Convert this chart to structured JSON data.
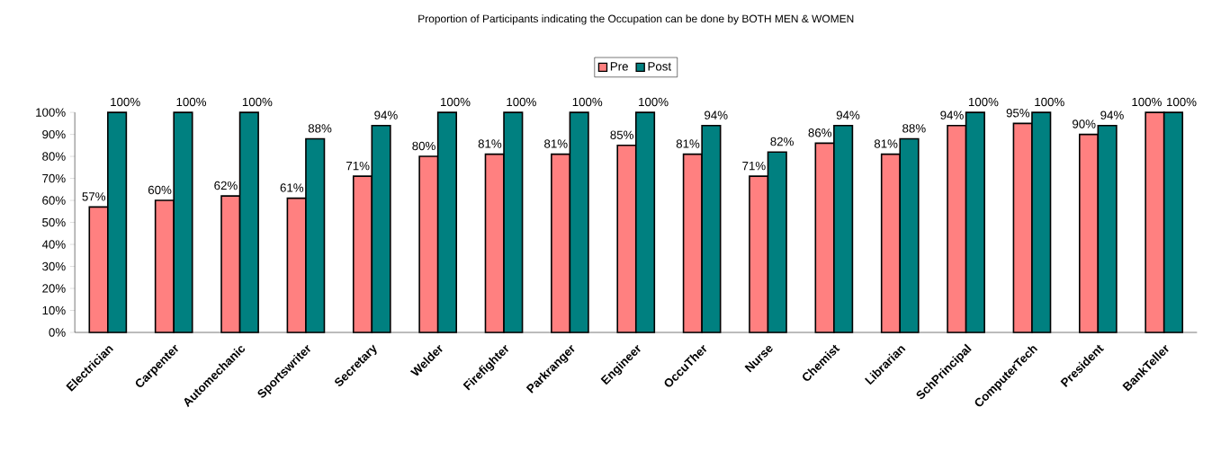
{
  "chart_data": {
    "type": "bar",
    "title": "Proportion of Participants indicating the Occupation can be done by BOTH MEN & WOMEN",
    "categories": [
      "Electrician",
      "Carpenter",
      "Automechanic",
      "Sportswriter",
      "Secretary",
      "Welder",
      "Firefighter",
      "Parkranger",
      "Engineer",
      "OccuTher",
      "Nurse",
      "Chemist",
      "Librarian",
      "SchPrincipal",
      "ComputerTech",
      "President",
      "BankTeller"
    ],
    "series": [
      {
        "name": "Pre",
        "color": "#ff8080",
        "values": [
          57,
          60,
          62,
          61,
          71,
          80,
          81,
          81,
          85,
          81,
          71,
          86,
          81,
          94,
          95,
          90,
          100
        ],
        "value_labels": [
          "57%",
          "60%",
          "62%",
          "61%",
          "71%",
          "80%",
          "81%",
          "81%",
          "85%",
          "81%",
          "71%",
          "86%",
          "81%",
          "94%",
          "95%",
          "90%",
          "100%"
        ]
      },
      {
        "name": "Post",
        "color": "#008080",
        "values": [
          100,
          100,
          100,
          88,
          94,
          100,
          100,
          100,
          100,
          94,
          82,
          94,
          88,
          100,
          100,
          94,
          100
        ],
        "value_labels": [
          "100%",
          "100%",
          "100%",
          "88%",
          "94%",
          "100%",
          "100%",
          "100%",
          "100%",
          "94%",
          "82%",
          "94%",
          "88%",
          "100%",
          "100%",
          "94%",
          "100%"
        ]
      }
    ],
    "ylim": [
      0,
      100
    ],
    "yticks": [
      {
        "value": 0,
        "label": "0%"
      },
      {
        "value": 10,
        "label": "10%"
      },
      {
        "value": 20,
        "label": "20%"
      },
      {
        "value": 30,
        "label": "30%"
      },
      {
        "value": 40,
        "label": "40%"
      },
      {
        "value": 50,
        "label": "50%"
      },
      {
        "value": 60,
        "label": "60%"
      },
      {
        "value": 70,
        "label": "70%"
      },
      {
        "value": 80,
        "label": "80%"
      },
      {
        "value": 90,
        "label": "90%"
      },
      {
        "value": 100,
        "label": "100%"
      }
    ],
    "legend": "top",
    "grid": false
  }
}
